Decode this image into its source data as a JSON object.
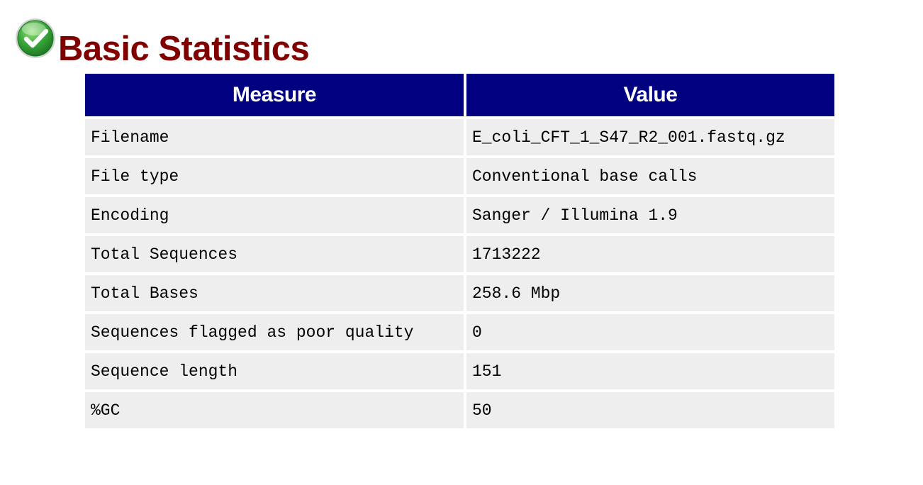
{
  "module": {
    "title": "Basic Statistics",
    "status": "pass",
    "status_icon": "check-circle-icon",
    "status_color": "#2e9e2e"
  },
  "table": {
    "headers": [
      "Measure",
      "Value"
    ],
    "rows": [
      {
        "measure": "Filename",
        "value": "E_coli_CFT_1_S47_R2_001.fastq.gz"
      },
      {
        "measure": "File type",
        "value": "Conventional base calls"
      },
      {
        "measure": "Encoding",
        "value": "Sanger / Illumina 1.9"
      },
      {
        "measure": "Total Sequences",
        "value": "1713222"
      },
      {
        "measure": "Total Bases",
        "value": "258.6 Mbp"
      },
      {
        "measure": "Sequences flagged as poor quality",
        "value": "0"
      },
      {
        "measure": "Sequence length",
        "value": "151"
      },
      {
        "measure": "%GC",
        "value": "50"
      }
    ]
  },
  "colors": {
    "title": "#800000",
    "header_bg": "#000080",
    "header_text": "#ffffff",
    "cell_bg": "#eeeeee"
  }
}
